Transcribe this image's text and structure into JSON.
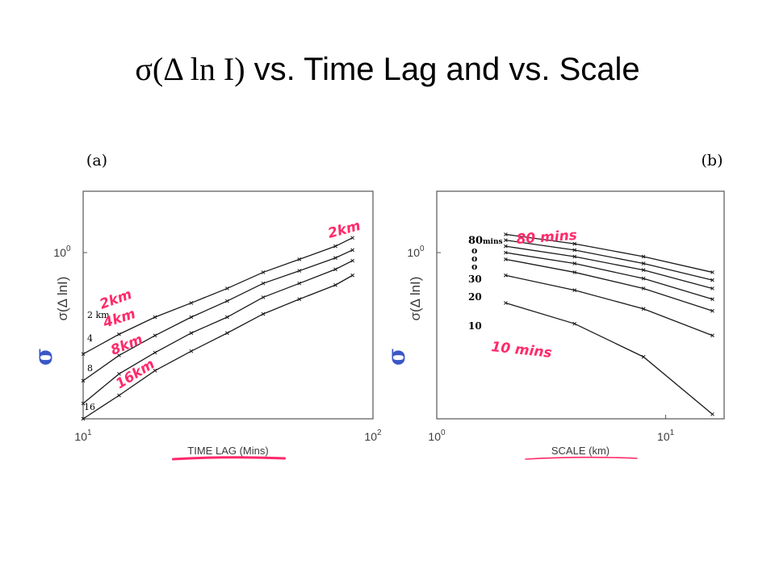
{
  "slide": {
    "title_symbolic": "σ(Δ ln I)",
    "title_text": " vs. Time Lag and vs. Scale"
  },
  "chart_data": [
    {
      "type": "line",
      "panel_label": "(a)",
      "xscale": "log",
      "yscale": "log",
      "xlim": [
        10,
        100
      ],
      "ylim": [
        0.28,
        1.6
      ],
      "x_ticks": [
        {
          "value": 10,
          "base": "10",
          "exp": "1"
        },
        {
          "value": 100,
          "base": "10",
          "exp": "2"
        }
      ],
      "y_ticks": [
        {
          "value": 1,
          "base": "10",
          "exp": "0"
        }
      ],
      "xlabel": "TIME LAG (Mins)",
      "ylabel": "σ(Δ lnI)",
      "ylabel_handwritten": "σ",
      "x_values": [
        10,
        13.3,
        17.7,
        23.6,
        31.4,
        41.8,
        55.7,
        74.2,
        85
      ],
      "series": [
        {
          "name": "2 km",
          "values": [
            0.46,
            0.535,
            0.61,
            0.68,
            0.76,
            0.86,
            0.95,
            1.05,
            1.12
          ]
        },
        {
          "name": "4",
          "values": [
            0.375,
            0.455,
            0.53,
            0.61,
            0.69,
            0.79,
            0.87,
            0.96,
            1.02
          ]
        },
        {
          "name": "8",
          "values": [
            0.315,
            0.395,
            0.465,
            0.54,
            0.61,
            0.71,
            0.79,
            0.88,
            0.94
          ]
        },
        {
          "name": "16",
          "values": [
            0.28,
            0.335,
            0.405,
            0.47,
            0.54,
            0.625,
            0.7,
            0.78,
            0.84
          ]
        }
      ],
      "annotations": {
        "series_labels": [
          "2 km",
          "4",
          "8",
          "16"
        ],
        "handwritten": [
          "2km",
          "2km",
          "4km",
          "8km",
          "16km"
        ]
      },
      "grid": false
    },
    {
      "type": "line",
      "panel_label": "(b)",
      "xscale": "log",
      "yscale": "log",
      "xlim": [
        1,
        18
      ],
      "ylim": [
        0.28,
        1.6
      ],
      "x_ticks": [
        {
          "value": 1,
          "base": "10",
          "exp": "0"
        },
        {
          "value": 10,
          "base": "10",
          "exp": "1"
        }
      ],
      "y_ticks": [
        {
          "value": 1,
          "base": "10",
          "exp": "0"
        }
      ],
      "xlabel": "SCALE (km)",
      "ylabel": "σ(Δ lnI)",
      "ylabel_handwritten": "σ",
      "x_values": [
        2,
        4,
        8,
        16
      ],
      "series": [
        {
          "name": "80 mins",
          "values": [
            1.15,
            1.07,
            0.97,
            0.86
          ]
        },
        {
          "name": "",
          "values": [
            1.1,
            1.02,
            0.92,
            0.81
          ]
        },
        {
          "name": "",
          "values": [
            1.05,
            0.97,
            0.875,
            0.76
          ]
        },
        {
          "name": "",
          "values": [
            1.0,
            0.92,
            0.82,
            0.7
          ]
        },
        {
          "name": "30",
          "values": [
            0.95,
            0.86,
            0.76,
            0.64
          ]
        },
        {
          "name": "20",
          "values": [
            0.84,
            0.75,
            0.65,
            0.53
          ]
        },
        {
          "name": "10",
          "values": [
            0.68,
            0.58,
            0.45,
            0.29
          ]
        }
      ],
      "annotations": {
        "series_labels": [
          "80",
          "mins",
          "o",
          "o",
          "o",
          "30",
          "20",
          "10"
        ],
        "handwritten": [
          "80 mins",
          "10 mins"
        ]
      },
      "grid": false
    }
  ],
  "colors": {
    "ink": "#000000",
    "curve": "#1a1a1a",
    "axis_label": "#3a3a3a",
    "frame": "#555555",
    "handwriting": "#ff2a6a",
    "sigma_blue": "#3a57c7"
  }
}
